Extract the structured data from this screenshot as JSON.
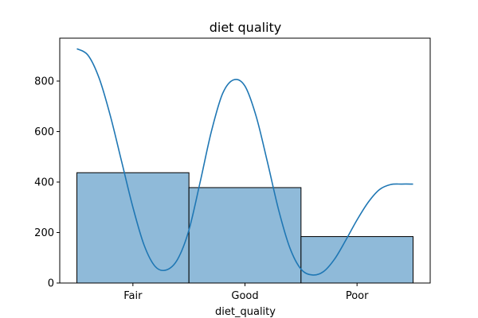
{
  "chart_data": {
    "type": "bar",
    "title": "diet quality",
    "xlabel": "diet_quality",
    "ylabel": "",
    "categories": [
      "Fair",
      "Good",
      "Poor"
    ],
    "values": [
      437,
      378,
      184
    ],
    "ylim": [
      0,
      970
    ],
    "yticks": [
      0,
      200,
      400,
      600,
      800
    ],
    "grid": false,
    "legend": "none",
    "bar_color": "#8fbad9",
    "bar_edge_color": "#000000",
    "kde": {
      "color": "#1f77b4",
      "x": [
        -0.5,
        -0.4,
        -0.3,
        -0.2,
        -0.1,
        0.0,
        0.1,
        0.2,
        0.3,
        0.4,
        0.5,
        0.6,
        0.7,
        0.8,
        0.9,
        1.0,
        1.1,
        1.2,
        1.3,
        1.4,
        1.5,
        1.6,
        1.7,
        1.8,
        1.9,
        2.0,
        2.1,
        2.2,
        2.3,
        2.4,
        2.5
      ],
      "y": [
        928,
        902,
        810,
        660,
        480,
        300,
        150,
        65,
        52,
        95,
        210,
        400,
        600,
        750,
        805,
        780,
        660,
        480,
        290,
        140,
        55,
        32,
        45,
        95,
        170,
        250,
        320,
        370,
        390,
        392,
        392
      ]
    }
  }
}
